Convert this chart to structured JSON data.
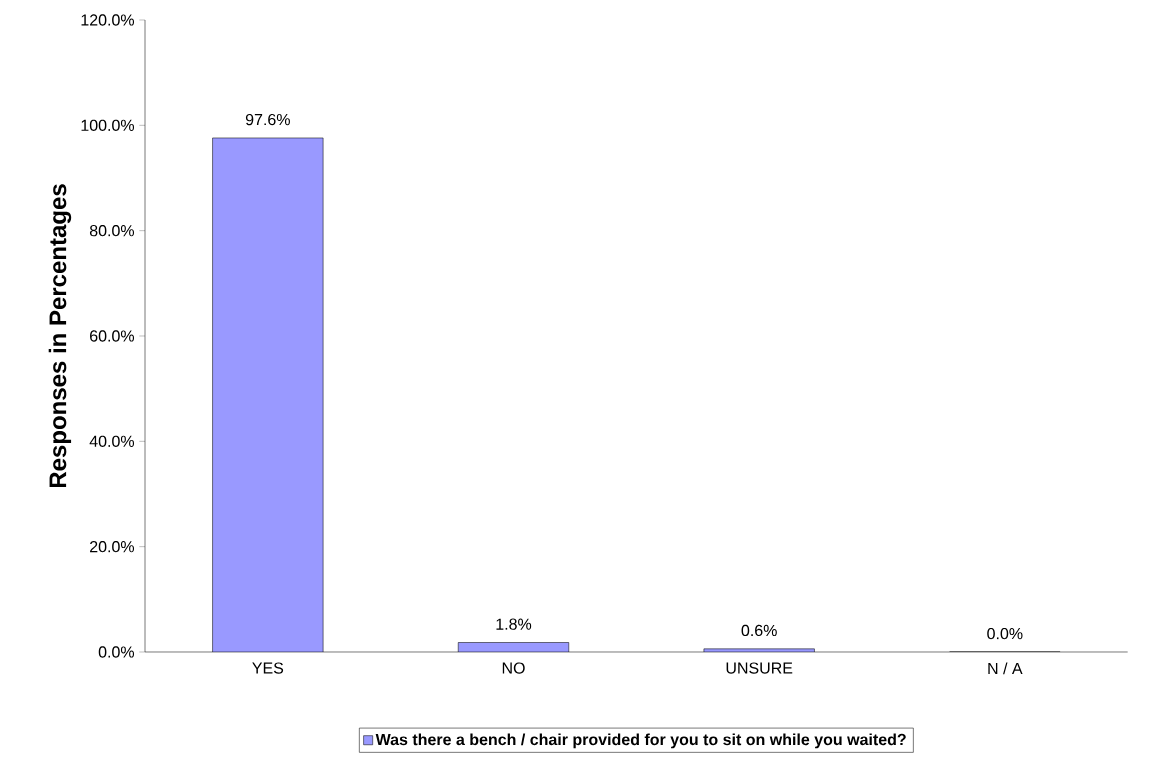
{
  "chart_data": {
    "type": "bar",
    "ylabel": "Responses in Percentages",
    "categories": [
      "YES",
      "NO",
      "UNSURE",
      "N / A"
    ],
    "series": [
      {
        "name": "Was there a bench / chair provided for you to sit on while you waited?",
        "color": "#9999ff",
        "values": [
          97.6,
          1.8,
          0.6,
          0.0
        ],
        "value_labels": [
          "97.6%",
          "1.8%",
          "0.6%",
          "0.0%"
        ]
      }
    ],
    "ylim": [
      0,
      120
    ],
    "yticks": [
      {
        "value": 0,
        "label": "0.0%"
      },
      {
        "value": 20,
        "label": "20.0%"
      },
      {
        "value": 40,
        "label": "40.0%"
      },
      {
        "value": 60,
        "label": "60.0%"
      },
      {
        "value": 80,
        "label": "80.0%"
      },
      {
        "value": 100,
        "label": "100.0%"
      },
      {
        "value": 120,
        "label": "120.0%"
      }
    ],
    "grid": false,
    "legend": "bottom"
  }
}
